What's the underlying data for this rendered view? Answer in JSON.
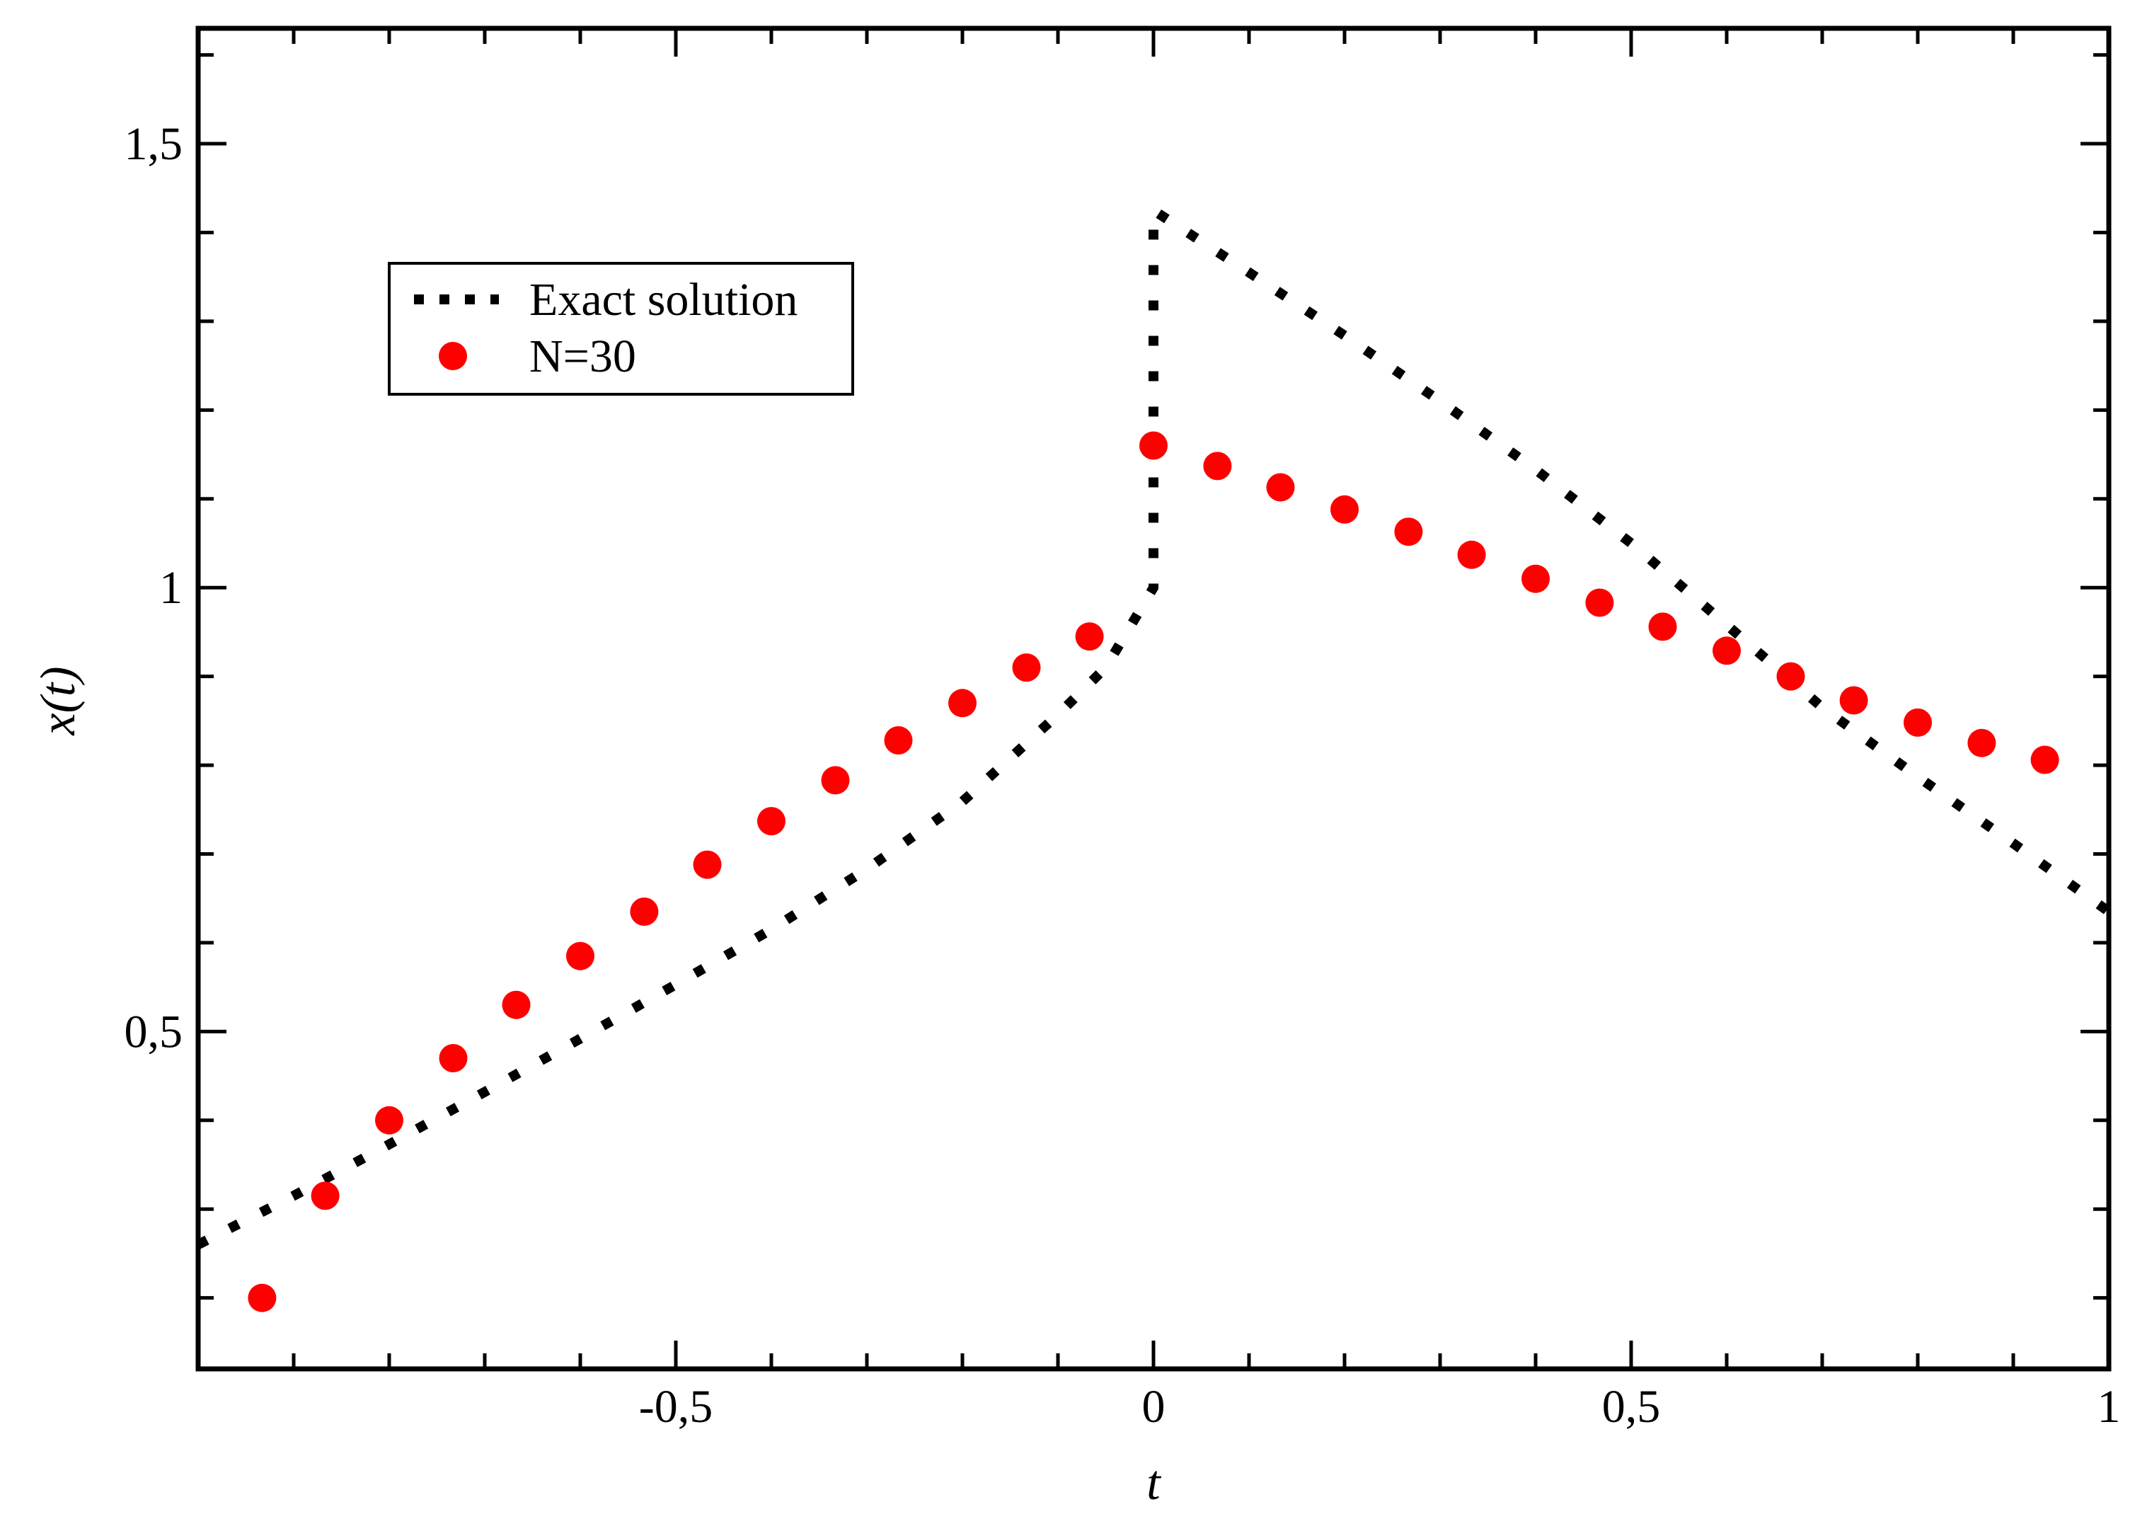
{
  "chart_data": {
    "type": "scatter",
    "xlabel": "t",
    "ylabel": "x(t)",
    "xlim": [
      -1,
      1
    ],
    "ylim": [
      0.12,
      1.63
    ],
    "xticks": [
      {
        "value": -0.5,
        "label": "-0,5"
      },
      {
        "value": 0,
        "label": "0"
      },
      {
        "value": 0.5,
        "label": "0,5"
      },
      {
        "value": 1,
        "label": "1"
      }
    ],
    "yticks": [
      {
        "value": 0.5,
        "label": "0,5"
      },
      {
        "value": 1,
        "label": "1"
      },
      {
        "value": 1.5,
        "label": "1,5"
      }
    ],
    "legend": {
      "position": "upper-left",
      "entries": [
        {
          "label": "Exact solution",
          "series": "exact"
        },
        {
          "label": "N=30",
          "series": "n30"
        }
      ]
    },
    "colors": {
      "exact": "#000000",
      "n30": "#ff0000"
    },
    "series": [
      {
        "id": "exact",
        "name": "Exact solution",
        "style": "dotted-line",
        "points": [
          [
            -1.0,
            0.26
          ],
          [
            -0.9,
            0.315
          ],
          [
            -0.8,
            0.373
          ],
          [
            -0.7,
            0.432
          ],
          [
            -0.6,
            0.492
          ],
          [
            -0.5,
            0.553
          ],
          [
            -0.4,
            0.615
          ],
          [
            -0.3,
            0.683
          ],
          [
            -0.2,
            0.759
          ],
          [
            -0.1,
            0.857
          ],
          [
            -0.05,
            0.91
          ],
          [
            0.0,
            1.0
          ],
          [
            0.0,
            1.425
          ],
          [
            0.1,
            1.355
          ],
          [
            0.2,
            1.284
          ],
          [
            0.3,
            1.21
          ],
          [
            0.4,
            1.133
          ],
          [
            0.5,
            1.05
          ],
          [
            0.6,
            0.958
          ],
          [
            0.7,
            0.865
          ],
          [
            0.8,
            0.787
          ],
          [
            0.9,
            0.712
          ],
          [
            1.0,
            0.635
          ]
        ]
      },
      {
        "id": "n30",
        "name": "N=30",
        "style": "markers",
        "points": [
          [
            -0.933,
            0.2
          ],
          [
            -0.867,
            0.315
          ],
          [
            -0.8,
            0.4
          ],
          [
            -0.733,
            0.47
          ],
          [
            -0.667,
            0.53
          ],
          [
            -0.6,
            0.585
          ],
          [
            -0.533,
            0.635
          ],
          [
            -0.467,
            0.688
          ],
          [
            -0.4,
            0.737
          ],
          [
            -0.333,
            0.783
          ],
          [
            -0.267,
            0.828
          ],
          [
            -0.2,
            0.87
          ],
          [
            -0.133,
            0.91
          ],
          [
            -0.067,
            0.945
          ],
          [
            0.0,
            1.16
          ],
          [
            0.067,
            1.137
          ],
          [
            0.133,
            1.113
          ],
          [
            0.2,
            1.088
          ],
          [
            0.267,
            1.063
          ],
          [
            0.333,
            1.037
          ],
          [
            0.4,
            1.01
          ],
          [
            0.467,
            0.983
          ],
          [
            0.533,
            0.956
          ],
          [
            0.6,
            0.929
          ],
          [
            0.667,
            0.9
          ],
          [
            0.733,
            0.873
          ],
          [
            0.8,
            0.848
          ],
          [
            0.867,
            0.825
          ],
          [
            0.933,
            0.806
          ]
        ]
      }
    ]
  }
}
